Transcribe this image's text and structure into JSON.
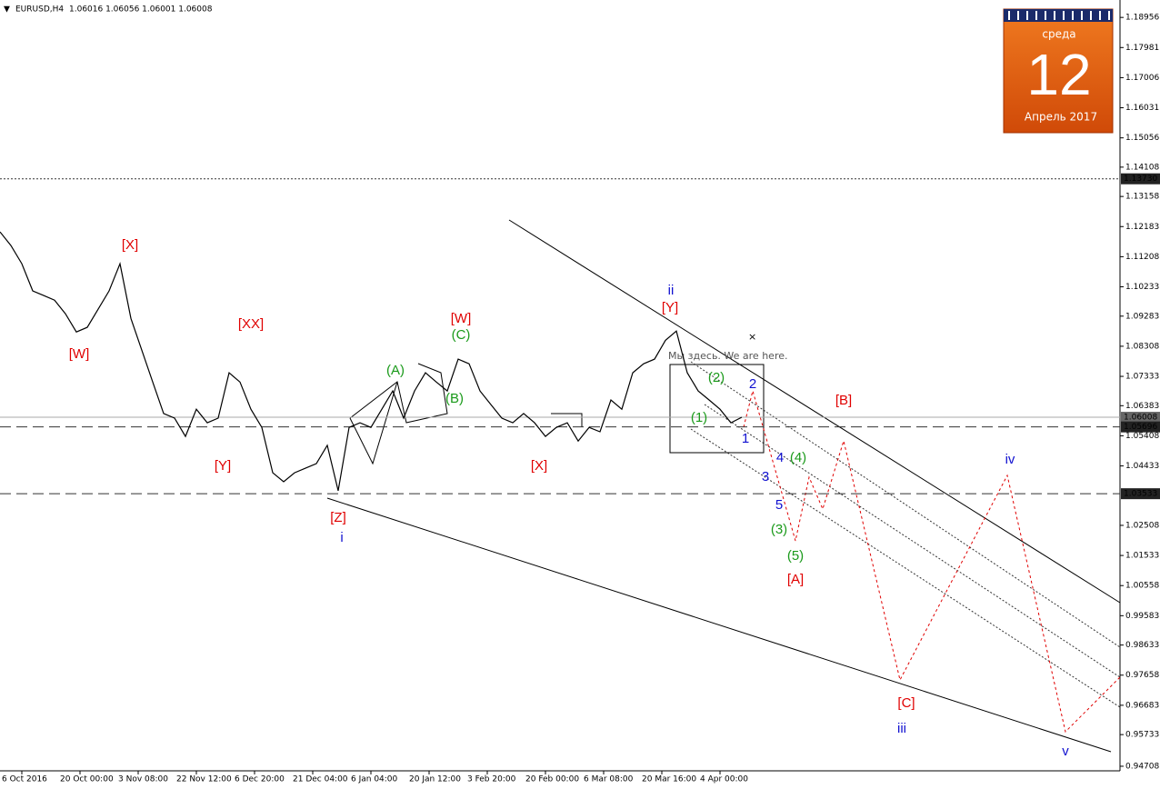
{
  "chart_data": {
    "type": "line",
    "title": "EURUSD,H4",
    "subtitle": "1.06016 1.06056 1.06001 1.06008",
    "note": "Мы здесь. We are here.",
    "color": "#000000",
    "x_tick_labels": [
      "6 Oct 2016",
      "20 Oct 00:00",
      "3 Nov 08:00",
      "22 Nov 12:00",
      "6 Dec 20:00",
      "21 Dec 04:00",
      "6 Jan 04:00",
      "20 Jan 12:00",
      "3 Feb 20:00",
      "20 Feb 00:00",
      "6 Mar 08:00",
      "20 Mar 16:00",
      "4 Apr 00:00"
    ],
    "values": [
      1.1201,
      1.1157,
      1.1098,
      1.101,
      1.0995,
      1.098,
      1.0936,
      1.0877,
      1.0892,
      1.0951,
      1.101,
      1.1098,
      1.0921,
      1.0818,
      1.0715,
      1.0613,
      1.0598,
      1.0539,
      1.0627,
      1.0583,
      1.0598,
      1.0745,
      1.0715,
      1.0627,
      1.0568,
      1.0421,
      1.0392,
      1.0421,
      1.0436,
      1.0451,
      1.051,
      1.0363,
      1.0568,
      1.0583,
      1.0568,
      1.0627,
      1.0686,
      1.0598,
      1.0686,
      1.0745,
      1.0715,
      1.0686,
      1.0789,
      1.0774,
      1.0686,
      1.0642,
      1.0598,
      1.0583,
      1.0613,
      1.0583,
      1.0539,
      1.0568,
      1.0583,
      1.0524,
      1.0568,
      1.0554,
      1.0657,
      1.0627,
      1.0745,
      1.0774,
      1.0789,
      1.085,
      1.088,
      1.0745,
      1.0686,
      1.0657,
      1.0627,
      1.0583,
      1.0601
    ],
    "ylim": [
      0.9456,
      1.1952
    ],
    "yticks": [
      1.18956,
      1.17981,
      1.17006,
      1.16031,
      1.15056,
      1.14108,
      1.13158,
      1.12183,
      1.11208,
      1.10233,
      1.09283,
      1.08308,
      1.07333,
      1.06383,
      1.05408,
      1.04433,
      1.02508,
      1.01533,
      1.00558,
      0.99583,
      0.98633,
      0.97658,
      0.96683,
      0.95733,
      0.94708
    ],
    "levels": [
      {
        "value": 1.1373,
        "label": "1.13730",
        "style": "dotted"
      },
      {
        "value": 1.06008,
        "label": "1.06008",
        "style": "solid"
      },
      {
        "value": 1.05696,
        "label": "1.05696",
        "style": "dashed"
      },
      {
        "value": 1.03533,
        "label": "1.03533",
        "style": "dashed"
      }
    ],
    "annotations": [
      {
        "text": "[X]",
        "color": "#e00000"
      },
      {
        "text": "[W]",
        "color": "#e00000"
      },
      {
        "text": "[XX]",
        "color": "#e00000"
      },
      {
        "text": "[Y]",
        "color": "#e00000"
      },
      {
        "text": "[Z]",
        "color": "#e00000"
      },
      {
        "text": "i",
        "color": "#1010d0"
      },
      {
        "text": "[W]",
        "color": "#e00000"
      },
      {
        "text": "(C)",
        "color": "#1a9a1a"
      },
      {
        "text": "(A)",
        "color": "#1a9a1a"
      },
      {
        "text": "(B)",
        "color": "#1a9a1a"
      },
      {
        "text": "[X]",
        "color": "#e00000"
      },
      {
        "text": "ii",
        "color": "#1010d0"
      },
      {
        "text": "[Y]",
        "color": "#e00000"
      },
      {
        "text": "(2)",
        "color": "#1a9a1a"
      },
      {
        "text": "2",
        "color": "#1010d0"
      },
      {
        "text": "(1)",
        "color": "#1a9a1a"
      },
      {
        "text": "1",
        "color": "#1010d0"
      },
      {
        "text": "4",
        "color": "#1010d0"
      },
      {
        "text": "(4)",
        "color": "#1a9a1a"
      },
      {
        "text": "3",
        "color": "#1010d0"
      },
      {
        "text": "5",
        "color": "#1010d0"
      },
      {
        "text": "(3)",
        "color": "#1a9a1a"
      },
      {
        "text": "(5)",
        "color": "#1a9a1a"
      },
      {
        "text": "[A]",
        "color": "#e00000"
      },
      {
        "text": "[B]",
        "color": "#e00000"
      },
      {
        "text": "[C]",
        "color": "#e00000"
      },
      {
        "text": "iii",
        "color": "#1010d0"
      },
      {
        "text": "iv",
        "color": "#1010d0"
      },
      {
        "text": "v",
        "color": "#1010d0"
      }
    ],
    "calendar": {
      "weekday": "среда",
      "day": 12,
      "month": "Апрель 2017"
    }
  }
}
